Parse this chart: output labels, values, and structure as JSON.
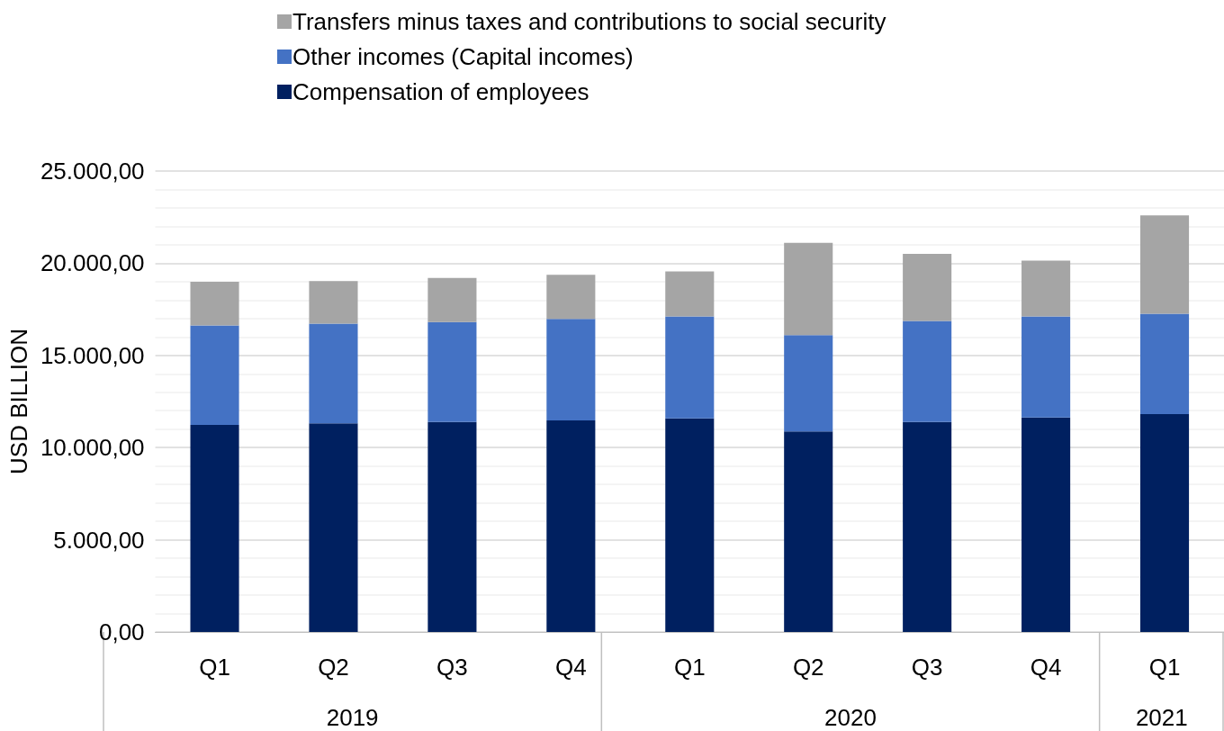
{
  "chart_data": {
    "type": "bar",
    "stacked": true,
    "ylabel": "USD BILLION",
    "categories": [
      "Q1",
      "Q2",
      "Q3",
      "Q4",
      "Q1",
      "Q2",
      "Q3",
      "Q4",
      "Q1"
    ],
    "annotations": [
      "2019",
      "2020",
      "2021"
    ],
    "series": [
      {
        "name": "Compensation of employees",
        "color": "#002060",
        "values": [
          11230,
          11310,
          11390,
          11480,
          11590,
          10880,
          11390,
          11630,
          11820
        ]
      },
      {
        "name": "Other incomes (Capital incomes)",
        "color": "#4472c4",
        "values": [
          5400,
          5410,
          5420,
          5500,
          5520,
          5220,
          5480,
          5480,
          5440
        ]
      },
      {
        "name": "Transfers minus taxes and contributions to social security",
        "color": "#a5a5a5",
        "values": [
          2360,
          2310,
          2390,
          2390,
          2450,
          5010,
          3640,
          3030,
          5340
        ]
      }
    ],
    "ylim": [
      0,
      25000
    ],
    "yticks": [
      {
        "value": 0,
        "label": "0,00"
      },
      {
        "value": 5000,
        "label": "5.000,00"
      },
      {
        "value": 10000,
        "label": "10.000,00"
      },
      {
        "value": 15000,
        "label": "15.000,00"
      },
      {
        "value": 20000,
        "label": "20.000,00"
      },
      {
        "value": 25000,
        "label": "25.000,00"
      }
    ],
    "grid": true,
    "legend": "top"
  }
}
